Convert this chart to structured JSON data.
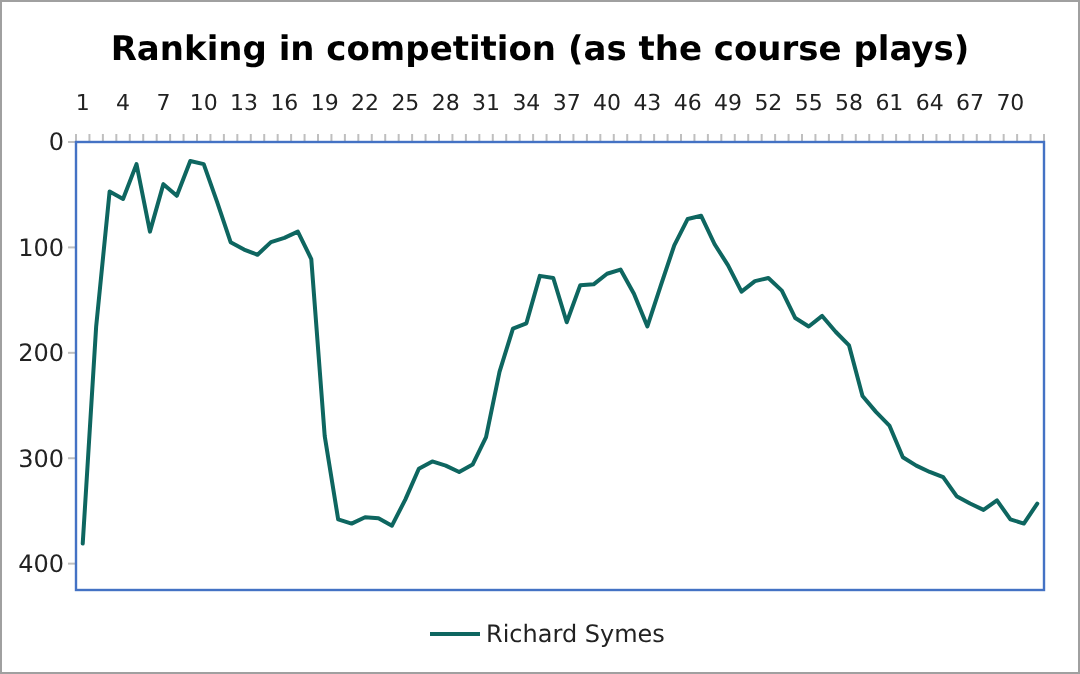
{
  "chart_data": {
    "type": "line",
    "title": "Ranking in competition (as the course plays)",
    "categories": [
      "1",
      null,
      null,
      "4",
      null,
      null,
      "7",
      null,
      null,
      "10",
      null,
      null,
      "13",
      null,
      null,
      "16",
      null,
      null,
      "19",
      null,
      null,
      "22",
      null,
      null,
      "25",
      null,
      null,
      "28",
      null,
      null,
      "31",
      null,
      null,
      "34",
      null,
      null,
      "37",
      null,
      null,
      "40",
      null,
      null,
      "43",
      null,
      null,
      "46",
      null,
      null,
      "49",
      null,
      null,
      "52",
      null,
      null,
      "55",
      null,
      null,
      "58",
      null,
      null,
      "61",
      null,
      null,
      "64",
      null,
      null,
      "67",
      null,
      null,
      "70",
      null,
      null
    ],
    "series": [
      {
        "name": "Richard Symes",
        "color": "#0e6660",
        "values": [
          381,
          175,
          47,
          54,
          21,
          85,
          40,
          51,
          18,
          21,
          57,
          95,
          102,
          107,
          95,
          91,
          85,
          111,
          279,
          358,
          362,
          356,
          357,
          364,
          339,
          310,
          303,
          307,
          313,
          306,
          280,
          218,
          177,
          172,
          127,
          129,
          171,
          136,
          135,
          125,
          121,
          144,
          175,
          136,
          98,
          73,
          70,
          97,
          117,
          142,
          132,
          129,
          141,
          167,
          175,
          165,
          180,
          193,
          241,
          256,
          269,
          299,
          307,
          313,
          318,
          336,
          343,
          349,
          340,
          358,
          362,
          343
        ]
      }
    ],
    "ylim": [
      425,
      0
    ],
    "yticks": [
      0,
      100,
      200,
      300,
      400
    ],
    "grid": false,
    "legend": "bottom",
    "marker": "none",
    "line_style": "solid"
  }
}
